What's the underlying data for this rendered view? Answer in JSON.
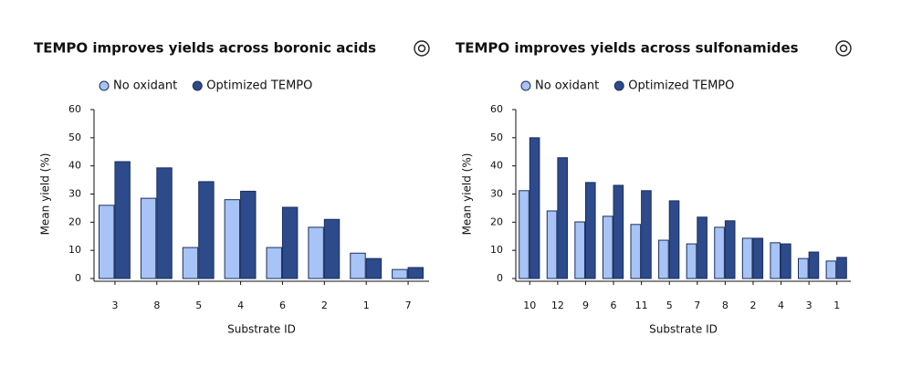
{
  "chart_data": [
    {
      "type": "bar",
      "title": "TEMPO improves yields across boronic acids",
      "xlabel": "Substrate ID",
      "ylabel": "Mean yield (%)",
      "categories": [
        "3",
        "8",
        "5",
        "4",
        "6",
        "2",
        "1",
        "7"
      ],
      "series": [
        {
          "name": "No oxidant",
          "color": "#a8c3f5",
          "values": [
            26,
            28.5,
            11,
            28,
            11,
            18.2,
            9,
            3.2
          ]
        },
        {
          "name": "Optimized TEMPO",
          "color": "#2d4a8a",
          "values": [
            41.5,
            39.3,
            34.4,
            31,
            25.3,
            21,
            7.1,
            3.9
          ]
        }
      ],
      "ylim": [
        0,
        60
      ],
      "yticks": [
        0,
        10,
        20,
        30,
        40,
        50,
        60
      ]
    },
    {
      "type": "bar",
      "title": "TEMPO improves yields across sulfonamides",
      "xlabel": "Substrate ID",
      "ylabel": "Mean yield (%)",
      "categories": [
        "10",
        "12",
        "9",
        "6",
        "11",
        "5",
        "7",
        "8",
        "2",
        "4",
        "3",
        "1"
      ],
      "series": [
        {
          "name": "No oxidant",
          "color": "#a8c3f5",
          "values": [
            31.2,
            24,
            20.1,
            22.1,
            19.2,
            13.6,
            12.3,
            18.2,
            14.3,
            12.7,
            7.1,
            6.2
          ]
        },
        {
          "name": "Optimized TEMPO",
          "color": "#2d4a8a",
          "values": [
            50,
            42.9,
            34.1,
            33.1,
            31.2,
            27.6,
            21.8,
            20.5,
            14.3,
            12.3,
            9.4,
            7.5
          ]
        }
      ],
      "ylim": [
        0,
        60
      ],
      "yticks": [
        0,
        10,
        20,
        30,
        40,
        50,
        60
      ]
    }
  ]
}
